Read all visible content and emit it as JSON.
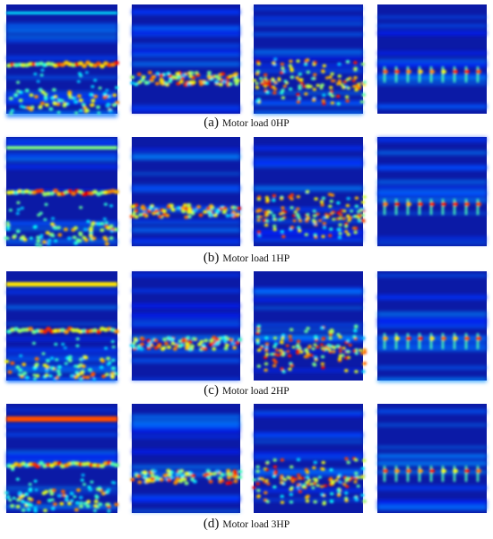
{
  "panels": [
    {
      "label": "(a)",
      "caption": "Motor load 0HP"
    },
    {
      "label": "(b)",
      "caption": "Motor load 1HP"
    },
    {
      "label": "(c)",
      "caption": "Motor load 2HP"
    },
    {
      "label": "(d)",
      "caption": "Motor load 3HP"
    }
  ]
}
